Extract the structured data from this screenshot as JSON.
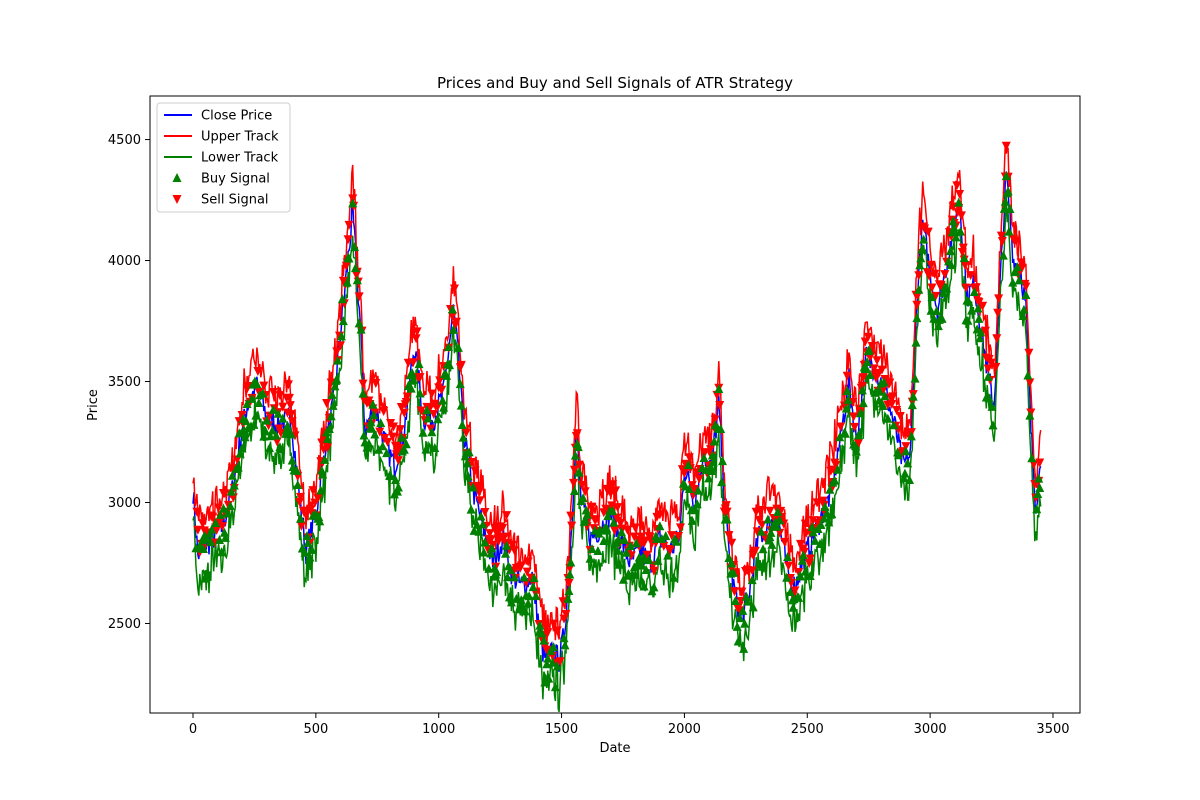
{
  "chart_data": {
    "type": "line",
    "title": "Prices and Buy and Sell Signals of ATR Strategy",
    "xlabel": "Date",
    "ylabel": "Price",
    "xlim": [
      -175,
      3610
    ],
    "ylim": [
      2130,
      4680
    ],
    "xticks": [
      0,
      500,
      1000,
      1500,
      2000,
      2500,
      3000,
      3500
    ],
    "yticks": [
      2500,
      3000,
      3500,
      4000,
      4500
    ],
    "grid": false,
    "legend_position": "upper left",
    "colors": {
      "close": "#0000ff",
      "upper": "#ff0000",
      "lower": "#008000",
      "buy": "#008000",
      "sell": "#ff0000"
    },
    "legend": [
      {
        "label": "Close Price",
        "kind": "line",
        "color": "#0000ff"
      },
      {
        "label": "Upper Track",
        "kind": "line",
        "color": "#ff0000"
      },
      {
        "label": "Lower Track",
        "kind": "line",
        "color": "#008000"
      },
      {
        "label": "Buy Signal",
        "kind": "triangle-up",
        "color": "#008000"
      },
      {
        "label": "Sell Signal",
        "kind": "triangle-down",
        "color": "#ff0000"
      }
    ],
    "close_price": {
      "x": [
        0,
        20,
        50,
        80,
        120,
        160,
        200,
        220,
        260,
        300,
        350,
        400,
        430,
        460,
        500,
        540,
        570,
        600,
        620,
        650,
        680,
        700,
        740,
        780,
        820,
        860,
        900,
        940,
        980,
        1020,
        1060,
        1080,
        1100,
        1140,
        1180,
        1220,
        1260,
        1300,
        1340,
        1380,
        1420,
        1440,
        1460,
        1490,
        1510,
        1530,
        1560,
        1580,
        1620,
        1660,
        1700,
        1740,
        1780,
        1820,
        1860,
        1900,
        1940,
        1980,
        2000,
        2040,
        2080,
        2110,
        2140,
        2170,
        2200,
        2230,
        2260,
        2300,
        2340,
        2380,
        2420,
        2450,
        2480,
        2520,
        2560,
        2600,
        2640,
        2670,
        2700,
        2740,
        2780,
        2820,
        2860,
        2890,
        2920,
        2950,
        2970,
        3000,
        3030,
        3060,
        3090,
        3120,
        3150,
        3180,
        3210,
        3240,
        3260,
        3290,
        3310,
        3340,
        3370,
        3390,
        3410,
        3430,
        3450
      ],
      "y": [
        3050,
        2780,
        2820,
        2850,
        2900,
        3050,
        3300,
        3400,
        3480,
        3350,
        3320,
        3350,
        3050,
        2800,
        2950,
        3250,
        3400,
        3700,
        3900,
        4200,
        3750,
        3300,
        3400,
        3250,
        3150,
        3300,
        3650,
        3350,
        3350,
        3450,
        3800,
        3600,
        3300,
        3050,
        2900,
        2750,
        2850,
        2700,
        2650,
        2700,
        2400,
        2330,
        2380,
        2350,
        2450,
        2700,
        3300,
        3000,
        2850,
        2900,
        2950,
        2850,
        2750,
        2800,
        2750,
        2850,
        2800,
        2850,
        3150,
        3000,
        3200,
        3150,
        3400,
        2900,
        2650,
        2520,
        2600,
        2850,
        2900,
        2950,
        2700,
        2650,
        2750,
        2850,
        2950,
        3050,
        3300,
        3500,
        3250,
        3600,
        3550,
        3450,
        3300,
        3150,
        3200,
        3900,
        4150,
        3950,
        3800,
        3950,
        4100,
        4250,
        3850,
        3900,
        3700,
        3500,
        3400,
        4000,
        4350,
        4000,
        3950,
        3800,
        3300,
        3000,
        3150
      ]
    },
    "band_offset": 120,
    "buy_signal_count": 600,
    "sell_signal_count": 600
  }
}
